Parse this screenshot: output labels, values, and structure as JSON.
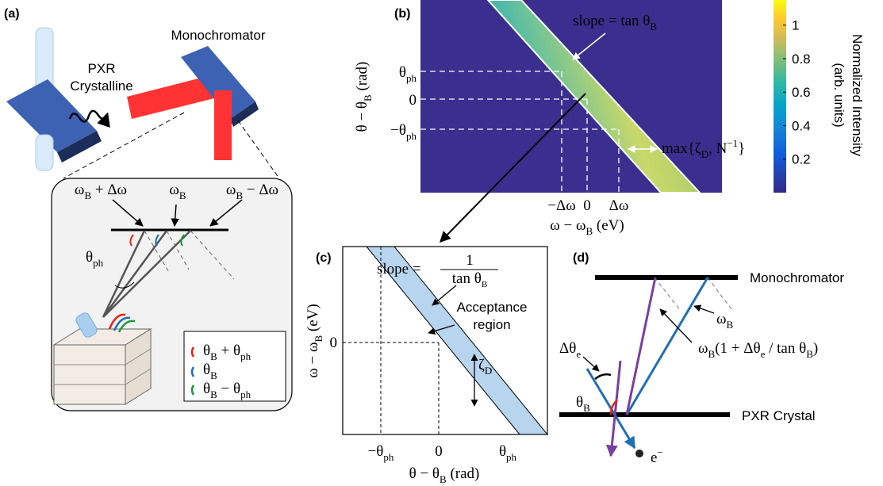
{
  "panel_a": {
    "label": "(a)",
    "source": [
      "PXR",
      "Crystalline"
    ],
    "monochromator": "Monochromator",
    "beams": [
      [
        "ω",
        "B",
        " + Δω"
      ],
      [
        "ω",
        "B"
      ],
      [
        "ω",
        "B",
        " − Δω"
      ]
    ],
    "angle": [
      "θ",
      "ph"
    ],
    "legend": [
      [
        "θ",
        "B",
        " + θ",
        "ph"
      ],
      [
        "θ",
        "B"
      ],
      [
        "θ",
        "B",
        " − θ",
        "ph"
      ]
    ]
  },
  "panel_b": {
    "label": "(b)",
    "slope": [
      "slope = tan θ",
      "B"
    ],
    "y_label": [
      "θ − θ",
      "B",
      " (rad)"
    ],
    "y_ticks": [
      [
        "θ",
        "ph"
      ],
      "0",
      [
        "−θ",
        "ph"
      ]
    ],
    "x_ticks": [
      "−Δω",
      "0",
      "Δω"
    ],
    "x_label": [
      "ω − ω",
      "B",
      " (eV)"
    ],
    "width_label": [
      "max{ζ",
      "D",
      ", N",
      "−1",
      "}"
    ],
    "colorbar": {
      "title": [
        "Normalized Intensity",
        "(arb. units)"
      ],
      "lim": [
        0,
        1.15
      ],
      "ticks": [
        0.2,
        0.4,
        0.6,
        0.8,
        1
      ]
    }
  },
  "panel_c": {
    "label": "(c)",
    "slope": [
      "slope = ",
      "1",
      "tan θ",
      "B"
    ],
    "region": [
      "Acceptance",
      "region"
    ],
    "width": [
      "ζ",
      "D"
    ],
    "y_label": [
      "ω − ω",
      "B",
      " (eV)"
    ],
    "y_tick": "0",
    "x_ticks": [
      [
        "−θ",
        "ph"
      ],
      "0",
      [
        "θ",
        "ph"
      ]
    ],
    "x_label": [
      "θ − θ",
      "B",
      " (rad)"
    ]
  },
  "panel_d": {
    "label": "(d)",
    "monochromator": "Monochromator",
    "crystal": "PXR Crystal",
    "omega": [
      "ω",
      "B"
    ],
    "shifted": [
      "ω",
      "B",
      "(1 + Δθ",
      "e",
      " / tan θ",
      "B",
      ")"
    ],
    "tilt": [
      "Δθ",
      "e"
    ],
    "angle": [
      "θ",
      "B"
    ],
    "electron": [
      "e",
      "−"
    ]
  }
}
